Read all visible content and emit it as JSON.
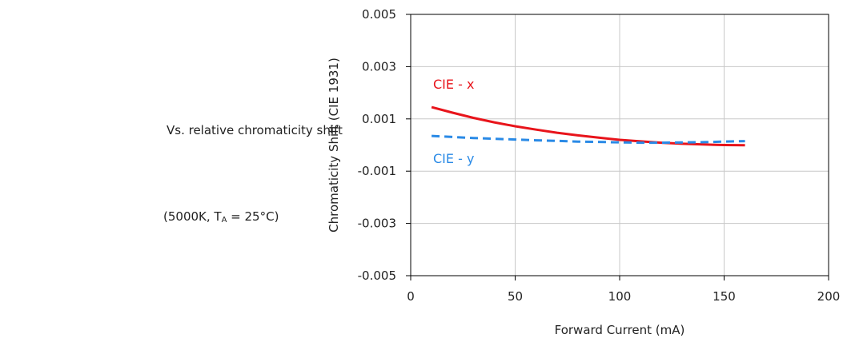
{
  "caption": {
    "line1": "Vs. relative chromaticity shift",
    "line2_prefix": "(5000K, T",
    "line2_sub": "A",
    "line2_suffix": " = 25°C)"
  },
  "chart_data": {
    "type": "line",
    "title": "",
    "xlabel": "Forward Current (mA)",
    "ylabel": "Chromaticity Shift (CIE 1931)",
    "xlim": [
      0,
      200
    ],
    "ylim": [
      -0.005,
      0.005
    ],
    "xticks": [
      0,
      50,
      100,
      150,
      200
    ],
    "xtick_labels": [
      "0",
      "50",
      "100",
      "150",
      "200"
    ],
    "yticks": [
      -0.005,
      -0.003,
      -0.001,
      0.001,
      0.003,
      0.005
    ],
    "ytick_labels": [
      "-0.005",
      "-0.003",
      "-0.001",
      "0.001",
      "0.003",
      "0.005"
    ],
    "grid": true,
    "series": [
      {
        "name": "CIE - x",
        "color": "#e8141b",
        "style": "solid",
        "x": [
          10,
          20,
          30,
          40,
          50,
          60,
          70,
          80,
          90,
          100,
          110,
          120,
          130,
          140,
          150,
          160
        ],
        "y": [
          0.00145,
          0.00124,
          0.00104,
          0.00087,
          0.00072,
          0.00059,
          0.00047,
          0.00037,
          0.00028,
          0.0002,
          0.00014,
          9e-05,
          5e-05,
          2e-05,
          0.0,
          -1e-05
        ]
      },
      {
        "name": "CIE - y",
        "color": "#2a8ae6",
        "style": "dashed",
        "x": [
          10,
          20,
          30,
          40,
          50,
          60,
          70,
          80,
          90,
          100,
          110,
          120,
          130,
          140,
          150,
          160
        ],
        "y": [
          0.00035,
          0.00031,
          0.00027,
          0.00024,
          0.00021,
          0.00018,
          0.00016,
          0.00013,
          0.00012,
          0.0001,
          9e-05,
          9e-05,
          0.0001,
          0.00011,
          0.00013,
          0.00015
        ]
      }
    ]
  }
}
